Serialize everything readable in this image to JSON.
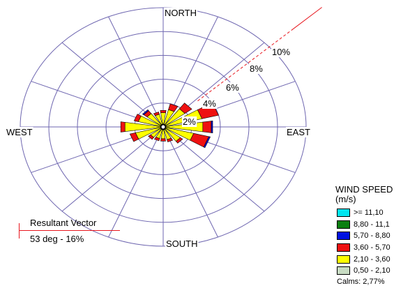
{
  "chart_data": {
    "type": "wind-rose",
    "directions": [
      "N",
      "NNE",
      "NE",
      "ENE",
      "E",
      "ESE",
      "SE",
      "SSE",
      "S",
      "SSW",
      "SW",
      "WSW",
      "W",
      "WNW",
      "NW",
      "NNW"
    ],
    "compass": {
      "north": "NORTH",
      "east": "EAST",
      "south": "SOUTH",
      "west": "WEST"
    },
    "ring_labels": [
      "2%",
      "4%",
      "6%",
      "8%",
      "10%"
    ],
    "rings_percent": [
      2,
      4,
      6,
      8,
      10
    ],
    "legend": {
      "title": "WIND SPEED",
      "unit": "(m/s)",
      "calms": "Calms: 2,77%",
      "classes": [
        {
          "label": ">= 11,10",
          "color": "#00e6f0"
        },
        {
          "label": "8,80 - 11,1",
          "color": "#0a7f10"
        },
        {
          "label": "5,70 - 8,80",
          "color": "#0011e0"
        },
        {
          "label": "3,60 - 5,70",
          "color": "#ee1111"
        },
        {
          "label": "2,10 - 3,60",
          "color": "#ffff00"
        },
        {
          "label": "0,50 - 2,10",
          "color": "#c8dcc3"
        }
      ]
    },
    "series": [
      {
        "name": "0,50 - 2,10",
        "values": [
          0.2,
          0.2,
          0.2,
          0.2,
          0.2,
          0.2,
          0.2,
          0.2,
          0.2,
          0.2,
          0.2,
          0.2,
          0.2,
          0.2,
          0.2,
          0.2
        ]
      },
      {
        "name": "2,10 - 3,60",
        "values": [
          1.0,
          1.3,
          1.7,
          2.6,
          2.6,
          2.0,
          1.3,
          0.9,
          0.8,
          0.8,
          0.9,
          1.8,
          2.5,
          1.6,
          1.2,
          0.9
        ]
      },
      {
        "name": "3,60 - 5,70",
        "values": [
          0.2,
          0.5,
          0.6,
          1.2,
          0.6,
          1.1,
          0.2,
          0.2,
          0.2,
          0.2,
          0.2,
          0.4,
          0.3,
          0.3,
          0.3,
          0.2
        ]
      },
      {
        "name": "5,70 - 8,80",
        "values": [
          0.0,
          0.0,
          0.0,
          0.0,
          0.1,
          0.1,
          0.0,
          0.0,
          0.0,
          0.0,
          0.0,
          0.0,
          0.0,
          0.0,
          0.1,
          0.0
        ]
      },
      {
        "name": "8,80 - 11,1",
        "values": [
          0,
          0,
          0,
          0,
          0,
          0,
          0,
          0,
          0,
          0,
          0,
          0,
          0,
          0,
          0,
          0
        ]
      },
      {
        "name": ">= 11,10",
        "values": [
          0,
          0,
          0,
          0,
          0,
          0,
          0,
          0,
          0,
          0,
          0,
          0,
          0,
          0,
          0,
          0
        ]
      }
    ],
    "resultant_vector": {
      "title": "Resultant Vector",
      "value": "53 deg - 16%",
      "direction_deg": 53
    }
  }
}
